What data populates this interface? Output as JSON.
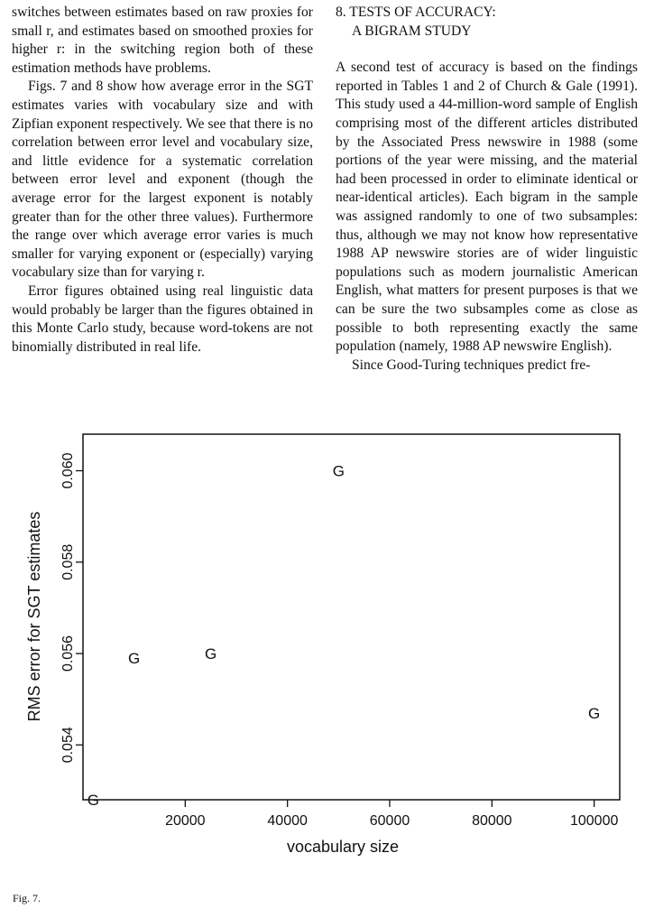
{
  "left_column": {
    "paragraphs": [
      "switches between estimates based on raw proxies for small r, and estimates based on smoothed proxies for higher r: in the switching region both of these estimation methods have problems.",
      "Figs. 7 and 8 show how average error in the SGT estimates varies with vocabulary size and with Zipfian exponent respectively. We see that there is no correlation between error level and vocabulary size, and little evidence for a systematic correlation between error level and exponent (though the average error for the largest exponent is notably greater than for the other three values). Furthermore the range over which average error varies is much smaller for varying exponent or (especially) varying vocabulary size than for varying r.",
      "Error figures obtained using real linguistic data would probably be larger than the figures obtained in this Monte Carlo study, because word-tokens are not binomially distributed in real life."
    ]
  },
  "right_column": {
    "section_heading_line1": "8. TESTS OF ACCURACY:",
    "section_heading_line2": "A BIGRAM STUDY",
    "paragraphs": [
      "A second test of accuracy is based on the findings reported in Tables 1 and 2 of Church & Gale (1991). This study used a 44-million-word sample of English comprising most of the different articles distributed by the Associated Press newswire in 1988 (some portions of the year were missing, and the material had been processed in order to eliminate identical or near-identical articles). Each bigram in the sample was assigned randomly to one of two subsamples: thus, although we may not know how representative 1988 AP newswire stories are of wider linguistic populations such as modern journalistic American English, what matters for present purposes is that we can be sure the two subsamples come as close as possible to both representing exactly the same population (namely, 1988 AP newswire English).",
      "Since Good-Turing techniques predict fre-"
    ]
  },
  "chart_data": {
    "type": "scatter",
    "marker": "G",
    "xlabel": "vocabulary size",
    "ylabel": "RMS error for SGT estimates",
    "xlim": [
      0,
      105000
    ],
    "ylim": [
      0.0528,
      0.0608
    ],
    "xticks": [
      20000,
      40000,
      60000,
      80000,
      100000
    ],
    "yticks": [
      0.054,
      0.056,
      0.058,
      0.06
    ],
    "points": [
      {
        "x": 2000,
        "y": 0.0528
      },
      {
        "x": 10000,
        "y": 0.0559
      },
      {
        "x": 25000,
        "y": 0.056
      },
      {
        "x": 50000,
        "y": 0.06
      },
      {
        "x": 100000,
        "y": 0.0547
      }
    ],
    "grid": false,
    "legend": "none"
  },
  "figure_caption": "Fig. 7."
}
